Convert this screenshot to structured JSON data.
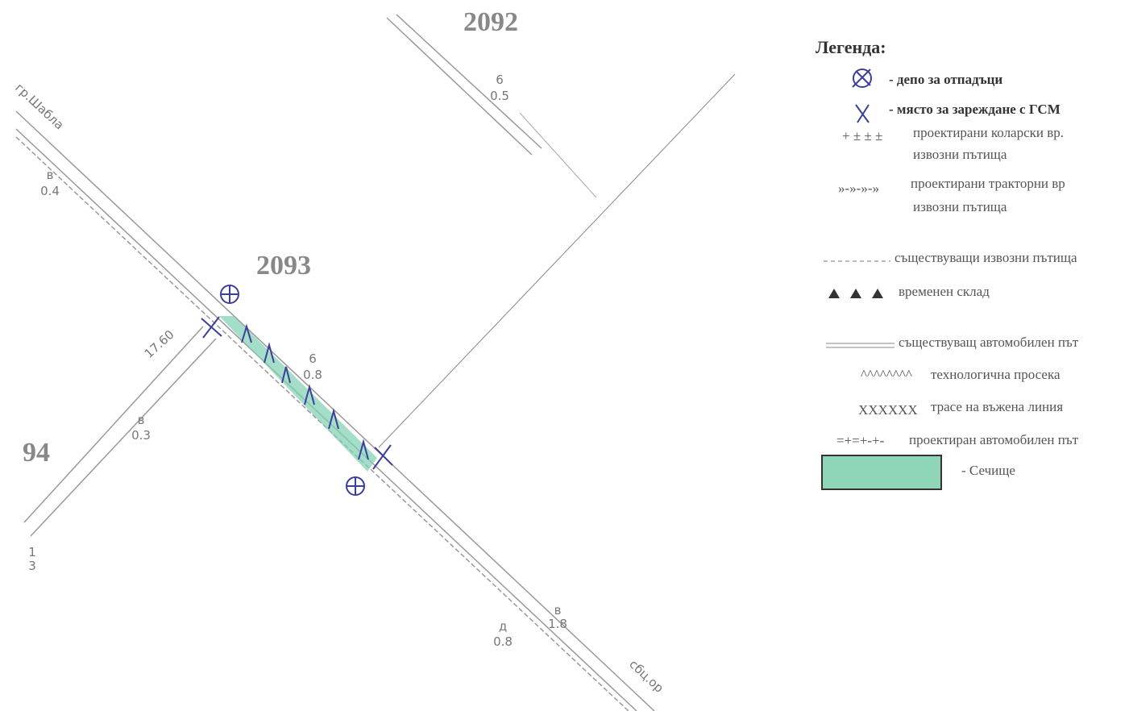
{
  "parcels": [
    "2092",
    "2093",
    "94"
  ],
  "subparcels": [
    {
      "letter": "6",
      "area": "0.5"
    },
    {
      "letter": "в",
      "area": "0.4"
    },
    {
      "letter": "6",
      "area": "0.8"
    },
    {
      "letter": "в",
      "area": "0.3"
    },
    {
      "letter": "д",
      "area": "0.8"
    },
    {
      "letter": "в",
      "area": "1.8"
    },
    {
      "letter": "1",
      "area": "3"
    }
  ],
  "road_labels": [
    "гр.Шабла",
    "17.60",
    "сбц.ор"
  ],
  "legend": {
    "title": "Легенда:",
    "items": [
      {
        "lines": [
          "- депо за отпадъци"
        ]
      },
      {
        "lines": [
          "- място за зареждане с ГСМ"
        ]
      },
      {
        "symbol": "+ ± ± ±",
        "lines": [
          "проектирани коларски вр.",
          "извозни пътища"
        ]
      },
      {
        "symbol": "»-»-»-»",
        "lines": [
          "проектирани тракторни вр",
          "извозни пътища"
        ]
      },
      {
        "lines": [
          "съществуващи извозни пътища"
        ]
      },
      {
        "lines": [
          "временен склад"
        ]
      },
      {
        "lines": [
          "съществуващ автомобилен път"
        ]
      },
      {
        "symbol": "^^^^^^^^",
        "lines": [
          "технологична просека"
        ]
      },
      {
        "symbol": "XXXXXX",
        "lines": [
          "трасе на въжена линия"
        ]
      },
      {
        "symbol": "=+=+-+-",
        "lines": [
          "проектиран автомобилен път"
        ]
      },
      {
        "lines": [
          "- Сечище"
        ]
      }
    ]
  }
}
